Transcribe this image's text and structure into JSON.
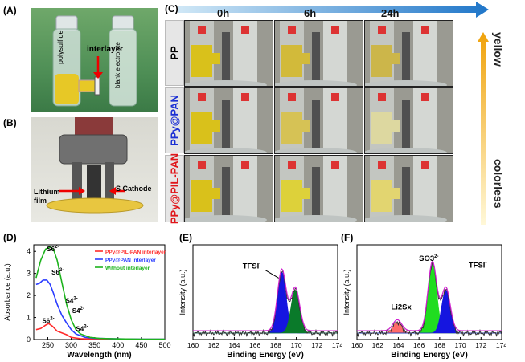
{
  "panels": {
    "A": {
      "label": "(A)",
      "text_polysulfide": "polysulfide",
      "text_interlayer": "interlayer",
      "text_blank": "blank electrolyte"
    },
    "B": {
      "label": "(B)",
      "text_lithium": "Lithium film",
      "text_cathode": "S Cathode"
    },
    "C": {
      "label": "(C)",
      "times": [
        "0h",
        "6h",
        "24h"
      ],
      "rows": [
        "PP",
        "PPy@PAN",
        "PPy@PIL-PAN"
      ],
      "row_colors": [
        "#000000",
        "#1a2fd4",
        "#e0161b"
      ],
      "scale_top": "yellow",
      "scale_bottom": "colorless",
      "solution_tones": [
        [
          "#d9c11b",
          "#d2ba3a",
          "#ccb64a"
        ],
        [
          "#d9c11b",
          "#d6c255",
          "#ddd8a0"
        ],
        [
          "#d9c11b",
          "#ddd13a",
          "#e2d570"
        ]
      ]
    }
  },
  "chart_data": [
    {
      "type": "line",
      "label": "(D)",
      "xlabel": "Wavelength (nm)",
      "ylabel": "Absorbance (a.u.)",
      "xlim": [
        220,
        500
      ],
      "ylim": [
        0,
        4.3
      ],
      "xticks": [
        250,
        300,
        350,
        400,
        450,
        500
      ],
      "yticks": [
        0,
        1,
        2,
        3,
        4
      ],
      "legend": "top-right",
      "series": [
        {
          "name": "PPy@PIL-PAN interlayer",
          "color": "#ff2a2a",
          "x": [
            225,
            235,
            245,
            252,
            260,
            270,
            280,
            290,
            300,
            320,
            350,
            400,
            450,
            500
          ],
          "y": [
            0.45,
            0.5,
            0.65,
            0.72,
            0.6,
            0.38,
            0.3,
            0.22,
            0.1,
            0.04,
            0.02,
            0.01,
            0.01,
            0.01
          ]
        },
        {
          "name": "PPy@PAN interlayer",
          "color": "#2a3cff",
          "x": [
            225,
            232,
            240,
            248,
            255,
            262,
            270,
            280,
            290,
            300,
            310,
            330,
            350,
            400,
            450,
            500
          ],
          "y": [
            2.5,
            2.55,
            2.7,
            2.7,
            2.5,
            2.1,
            1.6,
            1.1,
            0.75,
            0.45,
            0.25,
            0.1,
            0.06,
            0.03,
            0.02,
            0.02
          ]
        },
        {
          "name": "Without interlayer",
          "color": "#1db31d",
          "x": [
            225,
            235,
            245,
            255,
            262,
            270,
            280,
            290,
            300,
            310,
            320,
            340,
            360,
            400,
            450,
            500
          ],
          "y": [
            2.8,
            3.6,
            4.1,
            4.2,
            4.1,
            3.6,
            2.6,
            1.6,
            0.9,
            0.45,
            0.25,
            0.1,
            0.05,
            0.03,
            0.02,
            0.02
          ]
        }
      ],
      "annotations": [
        {
          "text": "S6",
          "sup": "2-",
          "x": 248,
          "y": 4.0
        },
        {
          "text": "S6",
          "sup": "2-",
          "x": 258,
          "y": 2.95
        },
        {
          "text": "S6",
          "sup": "2-",
          "x": 238,
          "y": 0.75
        },
        {
          "text": "S4",
          "sup": "2-",
          "x": 288,
          "y": 1.65
        },
        {
          "text": "S4",
          "sup": "2-",
          "x": 302,
          "y": 1.2
        },
        {
          "text": "S4",
          "sup": "2-",
          "x": 310,
          "y": 0.38
        }
      ]
    },
    {
      "type": "line",
      "label": "(E)",
      "xlabel": "Binding Energy (eV)",
      "ylabel": "Intensity (a.u.)",
      "xlim": [
        160,
        174
      ],
      "xticks": [
        160,
        162,
        164,
        166,
        168,
        170,
        172,
        174
      ],
      "annotation": "TFSI",
      "annotation_sup": "-",
      "peaks": [
        {
          "name": "TFSI 2p3/2",
          "color": "#1515e0",
          "center": 168.6,
          "height": 0.78
        },
        {
          "name": "TFSI 2p1/2",
          "color": "#0a7a2a",
          "center": 169.9,
          "height": 0.55
        }
      ],
      "envelope_color": "#d020d0",
      "raw_color": "#333333"
    },
    {
      "type": "line",
      "label": "(F)",
      "xlabel": "Binding Energy (eV)",
      "ylabel": "Intensity (a.u.)",
      "xlim": [
        160,
        174
      ],
      "xticks": [
        160,
        162,
        164,
        166,
        168,
        170,
        172,
        174
      ],
      "annotations": [
        {
          "text": "Li2Sx",
          "x": 163.3,
          "y": 0.3
        },
        {
          "text": "SO3",
          "sup": "2-",
          "x": 166.0,
          "y": 0.92
        },
        {
          "text": "TFSI",
          "sup": "-",
          "x": 170.8,
          "y": 0.83
        }
      ],
      "peaks": [
        {
          "name": "Li2Sx",
          "color": "#ff6a6a",
          "center": 163.9,
          "height": 0.14
        },
        {
          "name": "SO3 2-",
          "color": "#20dd20",
          "center": 167.3,
          "height": 0.88
        },
        {
          "name": "TFSI",
          "color": "#1515e0",
          "center": 168.6,
          "height": 0.55
        }
      ],
      "envelope_color": "#d020d0",
      "raw_color": "#333333"
    }
  ]
}
